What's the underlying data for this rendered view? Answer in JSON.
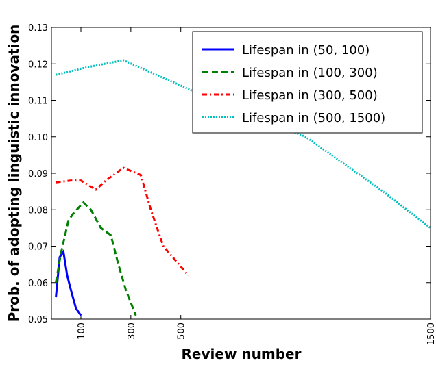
{
  "chart_data": {
    "type": "line",
    "xlabel": "Review number",
    "ylabel": "Prob. of adopting linguistic innovation",
    "xlim": [
      -18,
      1500
    ],
    "ylim": [
      0.05,
      0.13
    ],
    "xticks": [
      100,
      300,
      500,
      1500
    ],
    "yticks": [
      0.05,
      0.06,
      0.07,
      0.08,
      0.09,
      {
        "value": 0.1,
        "label": "0.10"
      },
      0.11,
      0.12,
      0.13
    ],
    "legend": "upper right",
    "series": [
      {
        "name": "Lifespan in (50, 100)",
        "color": "#0000ff",
        "dash": "solid",
        "x": [
          0,
          15,
          30,
          45,
          60,
          80,
          100
        ],
        "values": [
          0.056,
          0.067,
          0.0685,
          0.062,
          0.058,
          0.053,
          0.051
        ]
      },
      {
        "name": "Lifespan in (100, 300)",
        "color": "#008000",
        "dash": "dashed",
        "x": [
          0,
          20,
          50,
          70,
          110,
          140,
          180,
          220,
          250,
          280,
          320
        ],
        "values": [
          0.06,
          0.068,
          0.077,
          0.079,
          0.082,
          0.08,
          0.075,
          0.073,
          0.065,
          0.058,
          0.051
        ]
      },
      {
        "name": "Lifespan in (300, 500)",
        "color": "#ff0000",
        "dash": "dashdot",
        "x": [
          0,
          60,
          100,
          160,
          200,
          270,
          340,
          380,
          430,
          480,
          530
        ],
        "values": [
          0.0875,
          0.088,
          0.088,
          0.0855,
          0.088,
          0.0915,
          0.0895,
          0.08,
          0.07,
          0.066,
          0.062
        ]
      },
      {
        "name": "Lifespan in (500, 1500)",
        "color": "#00bfbf",
        "dash": "dotted",
        "x": [
          0,
          120,
          270,
          600,
          1000,
          1300,
          1500
        ],
        "values": [
          0.117,
          0.119,
          0.121,
          0.111,
          0.1,
          0.0855,
          0.075
        ]
      }
    ]
  }
}
